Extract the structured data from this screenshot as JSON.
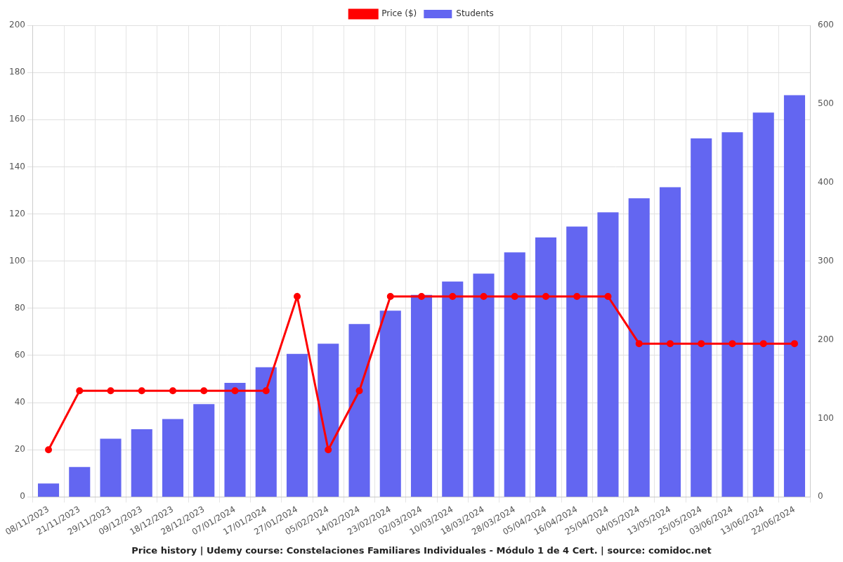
{
  "chart_data": {
    "type": "bar",
    "title": "Price history | Udemy course: Constelaciones Familiares Individuales - Módulo 1 de 4 Cert. | source: comidoc.net",
    "categories": [
      "08/11/2023",
      "21/11/2023",
      "29/11/2023",
      "09/12/2023",
      "18/12/2023",
      "28/12/2023",
      "07/01/2024",
      "17/01/2024",
      "27/01/2024",
      "05/02/2024",
      "14/02/2024",
      "23/02/2024",
      "02/03/2024",
      "10/03/2024",
      "18/03/2024",
      "28/03/2024",
      "05/04/2024",
      "16/04/2024",
      "25/04/2024",
      "04/05/2024",
      "13/05/2024",
      "25/05/2024",
      "03/06/2024",
      "13/06/2024",
      "22/06/2024"
    ],
    "series": [
      {
        "name": "Price ($)",
        "type": "line",
        "color": "#ff0000",
        "marker": "circle",
        "values": [
          20,
          45,
          45,
          45,
          45,
          45,
          45,
          45,
          85,
          20,
          45,
          85,
          85,
          85,
          85,
          85,
          85,
          85,
          85,
          65,
          65,
          65,
          65,
          65,
          65
        ]
      },
      {
        "name": "Students",
        "type": "bar",
        "color": "#6366f1",
        "axis": "y2",
        "values": [
          17,
          38,
          74,
          86,
          99,
          118,
          145,
          165,
          182,
          195,
          220,
          237,
          257,
          274,
          284,
          311,
          330,
          344,
          362,
          380,
          394,
          456,
          464,
          489,
          511
        ]
      }
    ],
    "ylim": [
      0,
      200
    ],
    "yticks": [
      0,
      20,
      40,
      60,
      80,
      100,
      120,
      140,
      160,
      180,
      200
    ],
    "y2lim": [
      0,
      600
    ],
    "y2ticks": [
      0,
      100,
      200,
      300,
      400,
      500,
      600
    ],
    "grid": true,
    "legend": "top"
  }
}
